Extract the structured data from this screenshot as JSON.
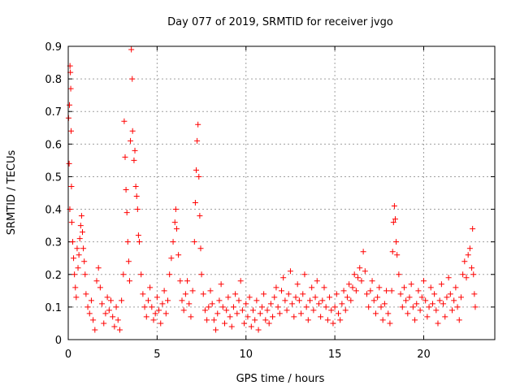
{
  "chart_data": {
    "type": "scatter",
    "title": "Day 077 of 2019, SRMTID for receiver jvgo",
    "xlabel": "GPS time / hours",
    "ylabel": "SRMTID / TECUs",
    "xlim": [
      0,
      24
    ],
    "ylim": [
      0,
      0.9
    ],
    "xticks": [
      "0",
      "5",
      "10",
      "15",
      "20"
    ],
    "yticks": [
      "0",
      "0.1",
      "0.2",
      "0.3",
      "0.4",
      "0.5",
      "0.6",
      "0.7",
      "0.8",
      "0.9"
    ],
    "grid": true,
    "marker": "+",
    "color": "#ff0000",
    "series": [
      {
        "name": "SRMTID",
        "points": [
          [
            0.02,
            0.68
          ],
          [
            0.05,
            0.54
          ],
          [
            0.07,
            0.72
          ],
          [
            0.09,
            0.4
          ],
          [
            0.1,
            0.84
          ],
          [
            0.12,
            0.82
          ],
          [
            0.14,
            0.77
          ],
          [
            0.16,
            0.64
          ],
          [
            0.18,
            0.47
          ],
          [
            0.2,
            0.36
          ],
          [
            0.25,
            0.3
          ],
          [
            0.3,
            0.25
          ],
          [
            0.35,
            0.2
          ],
          [
            0.4,
            0.16
          ],
          [
            0.45,
            0.13
          ],
          [
            0.5,
            0.28
          ],
          [
            0.55,
            0.22
          ],
          [
            0.6,
            0.26
          ],
          [
            0.65,
            0.31
          ],
          [
            0.7,
            0.35
          ],
          [
            0.75,
            0.38
          ],
          [
            0.8,
            0.33
          ],
          [
            0.85,
            0.28
          ],
          [
            0.9,
            0.24
          ],
          [
            0.95,
            0.2
          ],
          [
            1.0,
            0.14
          ],
          [
            1.1,
            0.1
          ],
          [
            1.2,
            0.08
          ],
          [
            1.3,
            0.12
          ],
          [
            1.4,
            0.06
          ],
          [
            1.5,
            0.03
          ],
          [
            1.6,
            0.18
          ],
          [
            1.7,
            0.22
          ],
          [
            1.8,
            0.16
          ],
          [
            1.9,
            0.11
          ],
          [
            2.0,
            0.05
          ],
          [
            2.1,
            0.08
          ],
          [
            2.2,
            0.13
          ],
          [
            2.3,
            0.09
          ],
          [
            2.4,
            0.12
          ],
          [
            2.5,
            0.07
          ],
          [
            2.6,
            0.04
          ],
          [
            2.7,
            0.1
          ],
          [
            2.8,
            0.06
          ],
          [
            2.9,
            0.03
          ],
          [
            3.0,
            0.12
          ],
          [
            3.1,
            0.2
          ],
          [
            3.15,
            0.67
          ],
          [
            3.2,
            0.56
          ],
          [
            3.25,
            0.46
          ],
          [
            3.3,
            0.39
          ],
          [
            3.35,
            0.3
          ],
          [
            3.4,
            0.24
          ],
          [
            3.45,
            0.18
          ],
          [
            3.5,
            0.61
          ],
          [
            3.55,
            0.89
          ],
          [
            3.6,
            0.8
          ],
          [
            3.62,
            0.64
          ],
          [
            3.7,
            0.55
          ],
          [
            3.75,
            0.58
          ],
          [
            3.8,
            0.47
          ],
          [
            3.85,
            0.44
          ],
          [
            3.9,
            0.4
          ],
          [
            3.95,
            0.32
          ],
          [
            4.0,
            0.3
          ],
          [
            4.1,
            0.2
          ],
          [
            4.2,
            0.14
          ],
          [
            4.3,
            0.1
          ],
          [
            4.4,
            0.07
          ],
          [
            4.5,
            0.12
          ],
          [
            4.6,
            0.16
          ],
          [
            4.7,
            0.1
          ],
          [
            4.8,
            0.06
          ],
          [
            4.9,
            0.08
          ],
          [
            5.0,
            0.13
          ],
          [
            5.1,
            0.09
          ],
          [
            5.2,
            0.05
          ],
          [
            5.3,
            0.11
          ],
          [
            5.4,
            0.15
          ],
          [
            5.5,
            0.08
          ],
          [
            5.6,
            0.12
          ],
          [
            5.7,
            0.2
          ],
          [
            5.8,
            0.25
          ],
          [
            5.9,
            0.3
          ],
          [
            6.0,
            0.36
          ],
          [
            6.05,
            0.4
          ],
          [
            6.1,
            0.34
          ],
          [
            6.2,
            0.26
          ],
          [
            6.3,
            0.18
          ],
          [
            6.4,
            0.12
          ],
          [
            6.5,
            0.09
          ],
          [
            6.6,
            0.14
          ],
          [
            6.7,
            0.18
          ],
          [
            6.8,
            0.11
          ],
          [
            6.9,
            0.07
          ],
          [
            7.0,
            0.15
          ],
          [
            7.1,
            0.3
          ],
          [
            7.15,
            0.42
          ],
          [
            7.2,
            0.52
          ],
          [
            7.25,
            0.61
          ],
          [
            7.3,
            0.66
          ],
          [
            7.35,
            0.5
          ],
          [
            7.4,
            0.38
          ],
          [
            7.45,
            0.28
          ],
          [
            7.5,
            0.2
          ],
          [
            7.6,
            0.14
          ],
          [
            7.7,
            0.09
          ],
          [
            7.8,
            0.06
          ],
          [
            7.9,
            0.1
          ],
          [
            8.0,
            0.15
          ],
          [
            8.1,
            0.11
          ],
          [
            8.2,
            0.06
          ],
          [
            8.3,
            0.03
          ],
          [
            8.4,
            0.08
          ],
          [
            8.5,
            0.12
          ],
          [
            8.6,
            0.17
          ],
          [
            8.7,
            0.1
          ],
          [
            8.8,
            0.05
          ],
          [
            8.9,
            0.09
          ],
          [
            9.0,
            0.13
          ],
          [
            9.1,
            0.07
          ],
          [
            9.2,
            0.04
          ],
          [
            9.3,
            0.1
          ],
          [
            9.4,
            0.14
          ],
          [
            9.5,
            0.08
          ],
          [
            9.6,
            0.12
          ],
          [
            9.7,
            0.18
          ],
          [
            9.8,
            0.09
          ],
          [
            9.9,
            0.05
          ],
          [
            10.0,
            0.11
          ],
          [
            10.1,
            0.07
          ],
          [
            10.2,
            0.13
          ],
          [
            10.3,
            0.04
          ],
          [
            10.4,
            0.09
          ],
          [
            10.5,
            0.06
          ],
          [
            10.6,
            0.12
          ],
          [
            10.7,
            0.03
          ],
          [
            10.8,
            0.08
          ],
          [
            10.9,
            0.1
          ],
          [
            11.0,
            0.14
          ],
          [
            11.1,
            0.06
          ],
          [
            11.2,
            0.09
          ],
          [
            11.3,
            0.05
          ],
          [
            11.4,
            0.11
          ],
          [
            11.5,
            0.07
          ],
          [
            11.6,
            0.13
          ],
          [
            11.7,
            0.16
          ],
          [
            11.8,
            0.1
          ],
          [
            11.9,
            0.08
          ],
          [
            12.0,
            0.15
          ],
          [
            12.1,
            0.19
          ],
          [
            12.2,
            0.12
          ],
          [
            12.3,
            0.09
          ],
          [
            12.4,
            0.14
          ],
          [
            12.5,
            0.21
          ],
          [
            12.6,
            0.11
          ],
          [
            12.7,
            0.07
          ],
          [
            12.8,
            0.13
          ],
          [
            12.9,
            0.17
          ],
          [
            13.0,
            0.12
          ],
          [
            13.1,
            0.08
          ],
          [
            13.2,
            0.14
          ],
          [
            13.3,
            0.2
          ],
          [
            13.4,
            0.1
          ],
          [
            13.5,
            0.06
          ],
          [
            13.6,
            0.12
          ],
          [
            13.7,
            0.16
          ],
          [
            13.8,
            0.09
          ],
          [
            13.9,
            0.13
          ],
          [
            14.0,
            0.18
          ],
          [
            14.1,
            0.11
          ],
          [
            14.2,
            0.07
          ],
          [
            14.3,
            0.12
          ],
          [
            14.4,
            0.16
          ],
          [
            14.5,
            0.1
          ],
          [
            14.6,
            0.06
          ],
          [
            14.7,
            0.13
          ],
          [
            14.8,
            0.09
          ],
          [
            14.9,
            0.05
          ],
          [
            15.0,
            0.1
          ],
          [
            15.1,
            0.14
          ],
          [
            15.2,
            0.08
          ],
          [
            15.3,
            0.06
          ],
          [
            15.4,
            0.11
          ],
          [
            15.5,
            0.15
          ],
          [
            15.6,
            0.09
          ],
          [
            15.7,
            0.13
          ],
          [
            15.8,
            0.17
          ],
          [
            15.9,
            0.12
          ],
          [
            16.0,
            0.16
          ],
          [
            16.1,
            0.2
          ],
          [
            16.2,
            0.15
          ],
          [
            16.3,
            0.19
          ],
          [
            16.4,
            0.22
          ],
          [
            16.5,
            0.18
          ],
          [
            16.6,
            0.27
          ],
          [
            16.7,
            0.21
          ],
          [
            16.8,
            0.14
          ],
          [
            16.9,
            0.1
          ],
          [
            17.0,
            0.15
          ],
          [
            17.1,
            0.18
          ],
          [
            17.2,
            0.12
          ],
          [
            17.3,
            0.08
          ],
          [
            17.4,
            0.13
          ],
          [
            17.5,
            0.16
          ],
          [
            17.6,
            0.1
          ],
          [
            17.7,
            0.06
          ],
          [
            17.8,
            0.11
          ],
          [
            17.9,
            0.15
          ],
          [
            18.0,
            0.08
          ],
          [
            18.1,
            0.05
          ],
          [
            18.2,
            0.15
          ],
          [
            18.25,
            0.27
          ],
          [
            18.3,
            0.36
          ],
          [
            18.35,
            0.41
          ],
          [
            18.4,
            0.37
          ],
          [
            18.45,
            0.3
          ],
          [
            18.5,
            0.26
          ],
          [
            18.6,
            0.2
          ],
          [
            18.7,
            0.14
          ],
          [
            18.8,
            0.1
          ],
          [
            18.9,
            0.16
          ],
          [
            19.0,
            0.12
          ],
          [
            19.1,
            0.08
          ],
          [
            19.2,
            0.13
          ],
          [
            19.3,
            0.17
          ],
          [
            19.4,
            0.1
          ],
          [
            19.5,
            0.06
          ],
          [
            19.6,
            0.11
          ],
          [
            19.7,
            0.15
          ],
          [
            19.8,
            0.09
          ],
          [
            19.9,
            0.13
          ],
          [
            20.0,
            0.18
          ],
          [
            20.1,
            0.12
          ],
          [
            20.2,
            0.07
          ],
          [
            20.3,
            0.1
          ],
          [
            20.4,
            0.16
          ],
          [
            20.5,
            0.11
          ],
          [
            20.6,
            0.14
          ],
          [
            20.7,
            0.09
          ],
          [
            20.8,
            0.05
          ],
          [
            20.9,
            0.12
          ],
          [
            21.0,
            0.17
          ],
          [
            21.1,
            0.11
          ],
          [
            21.2,
            0.07
          ],
          [
            21.3,
            0.13
          ],
          [
            21.4,
            0.19
          ],
          [
            21.5,
            0.14
          ],
          [
            21.6,
            0.09
          ],
          [
            21.7,
            0.12
          ],
          [
            21.8,
            0.16
          ],
          [
            21.9,
            0.1
          ],
          [
            22.0,
            0.06
          ],
          [
            22.1,
            0.13
          ],
          [
            22.2,
            0.2
          ],
          [
            22.3,
            0.24
          ],
          [
            22.4,
            0.19
          ],
          [
            22.5,
            0.26
          ],
          [
            22.6,
            0.28
          ],
          [
            22.7,
            0.22
          ],
          [
            22.75,
            0.34
          ],
          [
            22.8,
            0.2
          ],
          [
            22.85,
            0.14
          ],
          [
            22.9,
            0.1
          ]
        ]
      }
    ]
  }
}
